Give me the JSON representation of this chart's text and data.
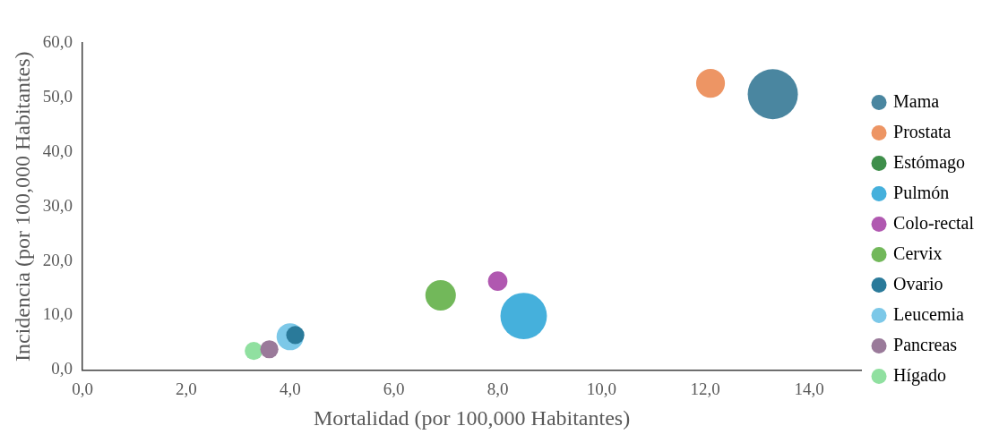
{
  "chart_data": {
    "type": "bubble",
    "xlabel": "Mortalidad (por 100,000 Habitantes)",
    "ylabel": "Incidencia (por 100,000 Habitantes)",
    "xlim": [
      0,
      15
    ],
    "ylim": [
      0,
      60
    ],
    "xticks": [
      {
        "value": 0,
        "label": "0,0"
      },
      {
        "value": 2,
        "label": "2,0"
      },
      {
        "value": 4,
        "label": "4,0"
      },
      {
        "value": 6,
        "label": "6,0"
      },
      {
        "value": 8,
        "label": "8,0"
      },
      {
        "value": 10,
        "label": "10,0"
      },
      {
        "value": 12,
        "label": "12,0"
      },
      {
        "value": 14,
        "label": "14,0"
      }
    ],
    "yticks": [
      {
        "value": 0,
        "label": "0,0"
      },
      {
        "value": 10,
        "label": "10,0"
      },
      {
        "value": 20,
        "label": "20,0"
      },
      {
        "value": 30,
        "label": "30,0"
      },
      {
        "value": 40,
        "label": "40,0"
      },
      {
        "value": 50,
        "label": "50,0"
      },
      {
        "value": 60,
        "label": "60,0"
      }
    ],
    "grid": false,
    "legend": "right",
    "series": [
      {
        "name": "Mama",
        "color": "#4a86a0",
        "x": [
          13.3
        ],
        "values": [
          50.6
        ],
        "sizes": [
          1
        ]
      },
      {
        "name": "Prostata",
        "color": "#ed9564",
        "x": [
          12.1
        ],
        "values": [
          52.6
        ],
        "sizes": [
          0.33
        ]
      },
      {
        "name": "Estómago",
        "color": "#3e8e4a",
        "x": [
          null
        ],
        "values": [
          null
        ],
        "sizes": [
          null
        ]
      },
      {
        "name": "Pulmón",
        "color": "#45b0dc",
        "x": [
          8.5
        ],
        "values": [
          9.9
        ],
        "sizes": [
          0.86
        ]
      },
      {
        "name": "Colo-rectal",
        "color": "#b058b0",
        "x": [
          8.0
        ],
        "values": [
          16.3
        ],
        "sizes": [
          0.15
        ]
      },
      {
        "name": "Cervix",
        "color": "#72b85a",
        "x": [
          6.9
        ],
        "values": [
          13.7
        ],
        "sizes": [
          0.37
        ]
      },
      {
        "name": "Ovario",
        "color": "#2a7a9a",
        "x": [
          4.1
        ],
        "values": [
          6.4
        ],
        "sizes": [
          0.13
        ]
      },
      {
        "name": "Leucemia",
        "color": "#7cc8e8",
        "x": [
          4.0
        ],
        "values": [
          6.1
        ],
        "sizes": [
          0.29
        ]
      },
      {
        "name": "Pancreas",
        "color": "#9a7a9a",
        "x": [
          3.6
        ],
        "values": [
          3.8
        ],
        "sizes": [
          0.13
        ]
      },
      {
        "name": "Hígado",
        "color": "#90e0a0",
        "x": [
          3.3
        ],
        "values": [
          3.5
        ],
        "sizes": [
          0.13
        ]
      }
    ]
  }
}
